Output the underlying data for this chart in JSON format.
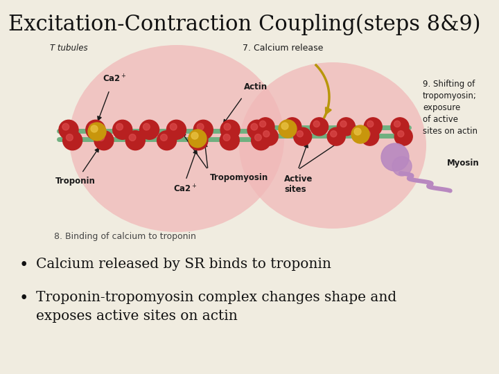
{
  "title": "Excitation-Contraction Coupling(steps 8&9)",
  "title_fontsize": 22,
  "background_color": "#f0ece0",
  "bullet_points": [
    "Calcium released by SR binds to troponin",
    "Troponin-tropomyosin complex changes shape and\n     exposes active sites on actin"
  ],
  "bullet_fontsize": 14.5,
  "pink_color": "#f0b8b8",
  "pink_alpha": 0.75,
  "red_sphere_color": "#b82020",
  "red_sphere_highlight": "#e05050",
  "green_strand_color": "#70b080",
  "gold_troponin_color": "#c8960c",
  "gold_troponin_highlight": "#e8c040",
  "myosin_color": "#b888c0",
  "label_color": "#1a1a1a",
  "step8_color": "#444444",
  "arrow_color": "#1a1a1a",
  "curved_arrow_color": "#b8960a"
}
